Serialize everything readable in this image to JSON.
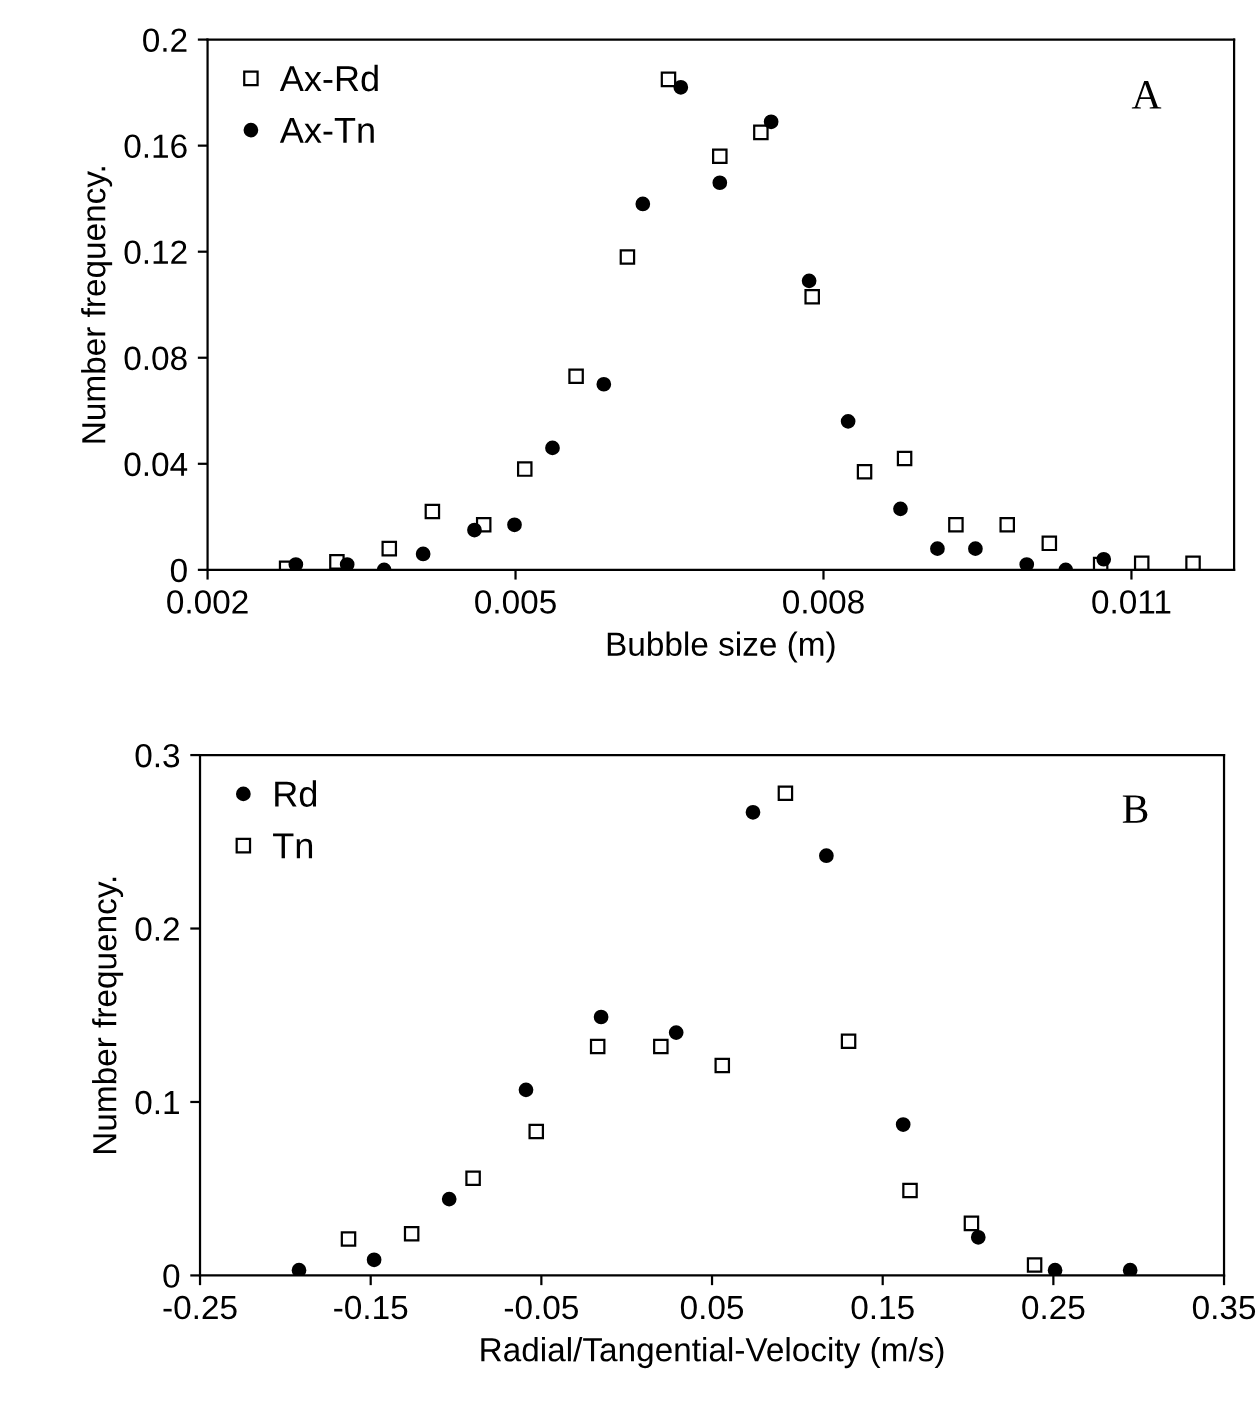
{
  "chart_data": [
    {
      "type": "scatter",
      "xlabel": "Bubble size (m)",
      "ylabel": "Number frequency.",
      "annotations": [
        "A"
      ],
      "xlim": [
        0.002,
        0.012
      ],
      "xticks": [
        0.002,
        0.005,
        0.008,
        0.011
      ],
      "ylim": [
        0,
        0.2
      ],
      "yticks": [
        0,
        0.04,
        0.08,
        0.12,
        0.16,
        0.2
      ],
      "grid": false,
      "legend": "top left",
      "series": [
        {
          "name": "Ax-Rd",
          "color": "#000000",
          "marker": "square",
          "x": [
            0.00277,
            0.00326,
            0.00377,
            0.00419,
            0.00469,
            0.00509,
            0.00559,
            0.00609,
            0.00649,
            0.00699,
            0.00739,
            0.00789,
            0.0084,
            0.00879,
            0.00929,
            0.00979,
            0.0102,
            0.0107,
            0.0111,
            0.0116
          ],
          "values": [
            0.0006,
            0.003,
            0.008,
            0.022,
            0.017,
            0.038,
            0.073,
            0.118,
            0.185,
            0.156,
            0.165,
            0.103,
            0.037,
            0.042,
            0.017,
            0.017,
            0.01,
            0.002,
            0.0025,
            0.0025
          ]
        },
        {
          "name": "Ax-Tn",
          "color": "#000000",
          "marker": "circle",
          "x": [
            0.00286,
            0.00336,
            0.00372,
            0.0041,
            0.0046,
            0.00499,
            0.00536,
            0.00586,
            0.00624,
            0.00661,
            0.00699,
            0.00749,
            0.00786,
            0.00824,
            0.00875,
            0.00911,
            0.00948,
            0.00998,
            0.01036,
            0.01073
          ],
          "values": [
            0.002,
            0.002,
            0.0,
            0.006,
            0.015,
            0.017,
            0.046,
            0.07,
            0.138,
            0.182,
            0.146,
            0.169,
            0.109,
            0.056,
            0.023,
            0.008,
            0.008,
            0.002,
            0.0,
            0.004
          ]
        }
      ]
    },
    {
      "type": "scatter",
      "xlabel": "Radial/Tangential-Velocity (m/s)",
      "ylabel": "Number frequency.",
      "annotations": [
        "B"
      ],
      "xlim": [
        -0.25,
        0.35
      ],
      "xticks": [
        -0.25,
        -0.15,
        -0.05,
        0.05,
        0.15,
        0.25,
        0.35
      ],
      "ylim": [
        0,
        0.3
      ],
      "yticks": [
        0,
        0.1,
        0.2,
        0.3
      ],
      "grid": false,
      "legend": "top left",
      "series": [
        {
          "name": "Rd",
          "color": "#000000",
          "marker": "circle",
          "x": [
            -0.192,
            -0.148,
            -0.104,
            -0.059,
            -0.015,
            0.029,
            0.074,
            0.117,
            0.162,
            0.206,
            0.251,
            0.295
          ],
          "values": [
            0.003,
            0.009,
            0.044,
            0.107,
            0.149,
            0.14,
            0.267,
            0.242,
            0.087,
            0.022,
            0.003,
            0.003
          ]
        },
        {
          "name": "Tn",
          "color": "#000000",
          "marker": "square",
          "x": [
            -0.163,
            -0.126,
            -0.09,
            -0.053,
            -0.017,
            0.02,
            0.056,
            0.093,
            0.13,
            0.166,
            0.202,
            0.239
          ],
          "values": [
            0.021,
            0.024,
            0.056,
            0.083,
            0.132,
            0.132,
            0.121,
            0.278,
            0.135,
            0.049,
            0.03,
            0.006
          ]
        }
      ]
    }
  ]
}
